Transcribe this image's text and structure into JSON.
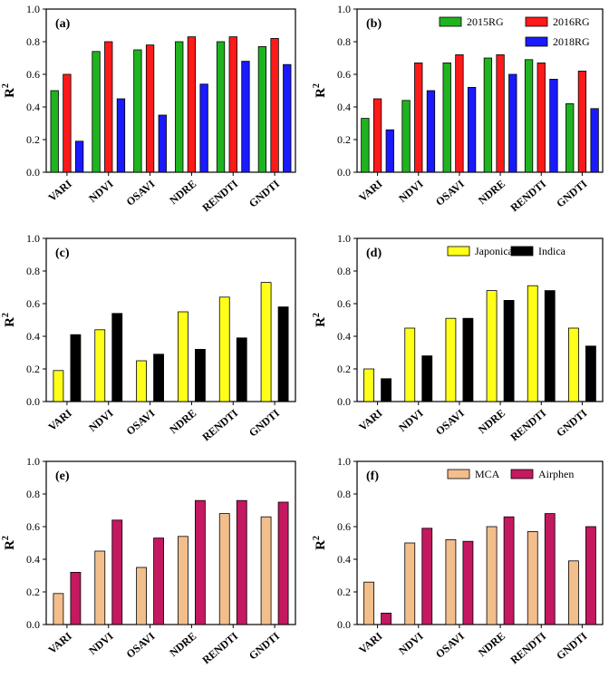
{
  "figure": {
    "y_axis_title": "R",
    "y_axis_title_sup": "2"
  },
  "chart_data": [
    {
      "type": "bar",
      "panel_label": "(a)",
      "categories": [
        "VARI",
        "NDVI",
        "OSAVI",
        "NDRE",
        "RENDTI",
        "GNDTI"
      ],
      "series": [
        {
          "name": "2015RG",
          "color": "#1fb31f",
          "values": [
            0.5,
            0.74,
            0.75,
            0.8,
            0.8,
            0.77
          ]
        },
        {
          "name": "2016RG",
          "color": "#ff1a1a",
          "values": [
            0.6,
            0.8,
            0.78,
            0.83,
            0.83,
            0.82
          ]
        },
        {
          "name": "2018RG",
          "color": "#1a1aff",
          "values": [
            0.19,
            0.45,
            0.35,
            0.54,
            0.68,
            0.66
          ]
        }
      ],
      "ylim": [
        0,
        1.0
      ],
      "yticks": [
        "0.0",
        "0.2",
        "0.4",
        "0.6",
        "0.8",
        "1.0"
      ],
      "ylabel": "R2",
      "show_legend": false
    },
    {
      "type": "bar",
      "panel_label": "(b)",
      "categories": [
        "VARI",
        "NDVI",
        "OSAVI",
        "NDRE",
        "RENDTI",
        "GNDTI"
      ],
      "series": [
        {
          "name": "2015RG",
          "color": "#1fb31f",
          "values": [
            0.33,
            0.44,
            0.67,
            0.7,
            0.69,
            0.42
          ]
        },
        {
          "name": "2016RG",
          "color": "#ff1a1a",
          "values": [
            0.45,
            0.67,
            0.72,
            0.72,
            0.67,
            0.62
          ]
        },
        {
          "name": "2018RG",
          "color": "#1a1aff",
          "values": [
            0.26,
            0.5,
            0.52,
            0.6,
            0.57,
            0.39
          ]
        }
      ],
      "ylim": [
        0,
        1.0
      ],
      "yticks": [
        "0.0",
        "0.2",
        "0.4",
        "0.6",
        "0.8",
        "1.0"
      ],
      "ylabel": "R2",
      "show_legend": true,
      "legend_layout": "grid-2x2-top-right"
    },
    {
      "type": "bar",
      "panel_label": "(c)",
      "categories": [
        "VARI",
        "NDVI",
        "OSAVI",
        "NDRE",
        "RENDTI",
        "GNDTI"
      ],
      "series": [
        {
          "name": "Japonica",
          "color": "#ffff1a",
          "values": [
            0.19,
            0.44,
            0.25,
            0.55,
            0.64,
            0.73
          ]
        },
        {
          "name": "Indica",
          "color": "#000000",
          "values": [
            0.41,
            0.54,
            0.29,
            0.32,
            0.39,
            0.58
          ]
        }
      ],
      "ylim": [
        0,
        1.0
      ],
      "yticks": [
        "0.0",
        "0.2",
        "0.4",
        "0.6",
        "0.8",
        "1.0"
      ],
      "ylabel": "R2",
      "show_legend": false
    },
    {
      "type": "bar",
      "panel_label": "(d)",
      "categories": [
        "VARI",
        "NDVI",
        "OSAVI",
        "NDRE",
        "RENDTI",
        "GNDTI"
      ],
      "series": [
        {
          "name": "Japonica",
          "color": "#ffff1a",
          "values": [
            0.2,
            0.45,
            0.51,
            0.68,
            0.71,
            0.45
          ]
        },
        {
          "name": "Indica",
          "color": "#000000",
          "values": [
            0.14,
            0.28,
            0.51,
            0.62,
            0.68,
            0.34
          ]
        }
      ],
      "ylim": [
        0,
        1.0
      ],
      "yticks": [
        "0.0",
        "0.2",
        "0.4",
        "0.6",
        "0.8",
        "1.0"
      ],
      "ylabel": "R2",
      "show_legend": true,
      "legend_layout": "row-top-right"
    },
    {
      "type": "bar",
      "panel_label": "(e)",
      "categories": [
        "VARI",
        "NDVI",
        "OSAVI",
        "NDRE",
        "RENDTI",
        "GNDTI"
      ],
      "series": [
        {
          "name": "MCA",
          "color": "#f2be8c",
          "values": [
            0.19,
            0.45,
            0.35,
            0.54,
            0.68,
            0.66
          ]
        },
        {
          "name": "Airphen",
          "color": "#c41860",
          "values": [
            0.32,
            0.64,
            0.53,
            0.76,
            0.76,
            0.75
          ]
        }
      ],
      "ylim": [
        0,
        1.0
      ],
      "yticks": [
        "0.0",
        "0.2",
        "0.4",
        "0.6",
        "0.8",
        "1.0"
      ],
      "ylabel": "R2",
      "show_legend": false
    },
    {
      "type": "bar",
      "panel_label": "(f)",
      "categories": [
        "VARI",
        "NDVI",
        "OSAVI",
        "NDRE",
        "RENDTI",
        "GNDTI"
      ],
      "series": [
        {
          "name": "MCA",
          "color": "#f2be8c",
          "values": [
            0.26,
            0.5,
            0.52,
            0.6,
            0.57,
            0.39
          ]
        },
        {
          "name": "Airphen",
          "color": "#c41860",
          "values": [
            0.07,
            0.59,
            0.51,
            0.66,
            0.68,
            0.6
          ]
        }
      ],
      "ylim": [
        0,
        1.0
      ],
      "yticks": [
        "0.0",
        "0.2",
        "0.4",
        "0.6",
        "0.8",
        "1.0"
      ],
      "ylabel": "R2",
      "show_legend": true,
      "legend_layout": "row-top-right"
    }
  ]
}
